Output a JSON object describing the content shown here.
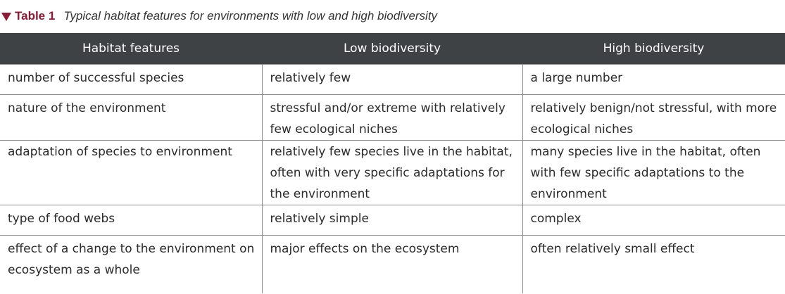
{
  "caption": {
    "table_number": "Table 1",
    "title": "Typical habitat features for environments with low and high biodiversity"
  },
  "table": {
    "headers": [
      "Habitat features",
      "Low biodiversity",
      "High biodiversity"
    ],
    "rows": [
      [
        "number of successful species",
        "relatively few",
        "a large number"
      ],
      [
        "nature of the environment",
        "stressful and/or extreme with relatively few ecological niches",
        "relatively benign/not stressful, with more ecological niches"
      ],
      [
        "adaptation of species to environment",
        "relatively few species live in the habitat, often with very specific adaptations for the environment",
        "many species live in the habitat, often with few specific adaptations to the environment"
      ],
      [
        "type of food webs",
        "relatively simple",
        "complex"
      ],
      [
        "effect of a change to the environment on ecosystem as a whole",
        "major effects on the ecosystem",
        "often relatively small effect"
      ]
    ]
  },
  "colors": {
    "header_bg": "#3f4245",
    "accent": "#8a1c36",
    "grid_line": "#8c8c8c"
  }
}
